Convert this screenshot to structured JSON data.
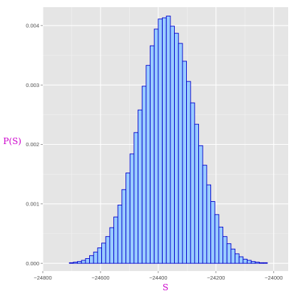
{
  "chart_data": {
    "type": "bar",
    "xlabel": "S",
    "ylabel": "P(S)",
    "xlim": [
      -24800,
      -23950
    ],
    "ylim": [
      -0.00013,
      0.00431
    ],
    "x_ticks": [
      {
        "value": -24800,
        "label": "−24800"
      },
      {
        "value": -24600,
        "label": "−24600"
      },
      {
        "value": -24400,
        "label": "−24400"
      },
      {
        "value": -24200,
        "label": "−24200"
      },
      {
        "value": -24000,
        "label": "−24000"
      }
    ],
    "y_ticks": [
      {
        "value": 0.0,
        "label": "0.000"
      },
      {
        "value": 0.001,
        "label": "0.001"
      },
      {
        "value": 0.002,
        "label": "0.002"
      },
      {
        "value": 0.003,
        "label": "0.003"
      },
      {
        "value": 0.004,
        "label": "0.004"
      }
    ],
    "grid": true,
    "bin_width": 14,
    "x": [
      -24743,
      -24729,
      -24715,
      -24701,
      -24687,
      -24673,
      -24659,
      -24645,
      -24631,
      -24617,
      -24603,
      -24589,
      -24575,
      -24561,
      -24547,
      -24533,
      -24519,
      -24505,
      -24491,
      -24477,
      -24463,
      -24449,
      -24435,
      -24421,
      -24407,
      -24393,
      -24379,
      -24365,
      -24351,
      -24337,
      -24323,
      -24309,
      -24295,
      -24281,
      -24267,
      -24253,
      -24239,
      -24225,
      -24211,
      -24197,
      -24183,
      -24169,
      -24155,
      -24141,
      -24127,
      -24113,
      -24099,
      -24085,
      -24071,
      -24057,
      -24043,
      -24029,
      -24015,
      -24001,
      -23987,
      -23973,
      -23959
    ],
    "values": [
      0.0,
      0.0,
      0.0,
      1e-05,
      2e-05,
      3e-05,
      5e-05,
      8e-05,
      0.00013,
      0.00019,
      0.00026,
      0.00034,
      0.00045,
      0.0006,
      0.00078,
      0.00098,
      0.00124,
      0.00152,
      0.00184,
      0.0022,
      0.00258,
      0.00298,
      0.00333,
      0.00366,
      0.00394,
      0.00411,
      0.00413,
      0.00416,
      0.00399,
      0.00387,
      0.0037,
      0.0034,
      0.00306,
      0.0027,
      0.00234,
      0.00198,
      0.00165,
      0.00132,
      0.00104,
      0.00082,
      0.00061,
      0.00045,
      0.00033,
      0.00024,
      0.00016,
      0.00011,
      7e-05,
      5e-05,
      3e-05,
      2e-05,
      1e-05,
      1e-05,
      0.0,
      0.0,
      0.0,
      0.0,
      0.0
    ],
    "colors": {
      "panel": "#e5e5e5",
      "grid_major": "#ffffff",
      "grid_minor": "#f2f2f2",
      "bar_fill": "#99ccff",
      "bar_stroke": "#0000cc",
      "label": "#cc00cc"
    }
  }
}
